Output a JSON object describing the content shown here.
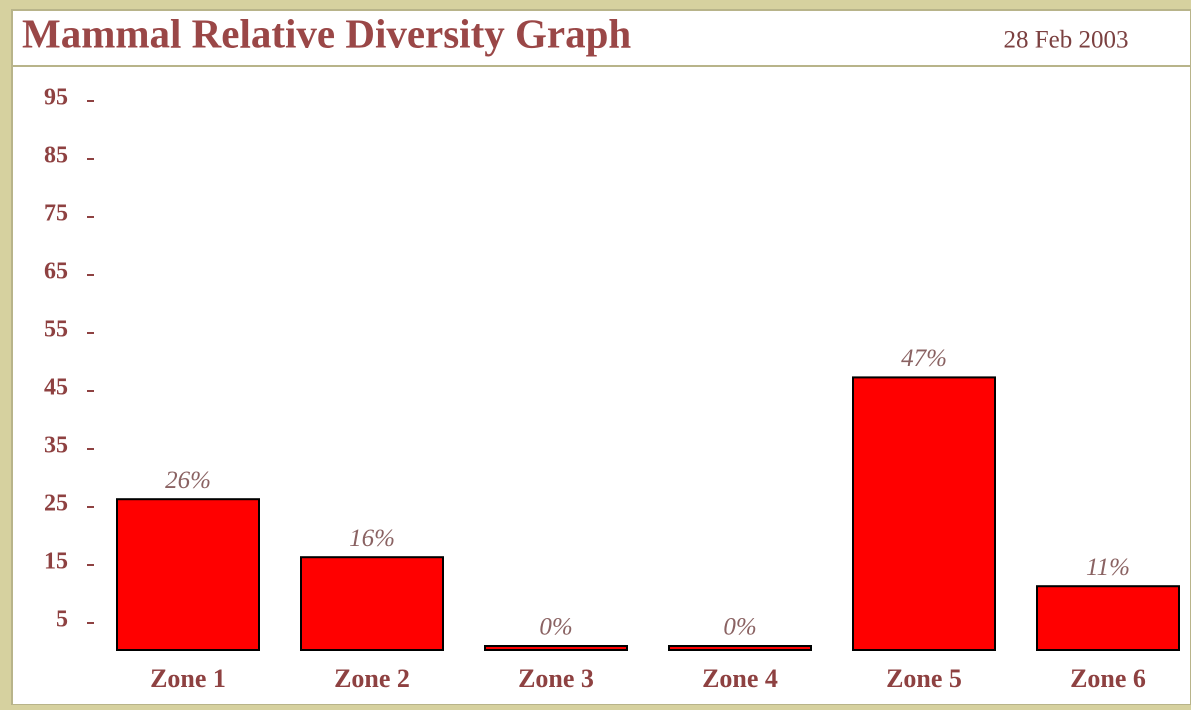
{
  "chart_data": {
    "type": "bar",
    "title": "Mammal Relative Diversity Graph",
    "subtitle": "28 Feb 2003",
    "categories": [
      "Zone 1",
      "Zone 2",
      "Zone 3",
      "Zone 4",
      "Zone 5",
      "Zone 6"
    ],
    "values": [
      26,
      16,
      0,
      0,
      47,
      11
    ],
    "value_labels": [
      "26%",
      "16%",
      "0%",
      "0%",
      "47%",
      "11%"
    ],
    "color": "#ff0000",
    "ylim": [
      0,
      100
    ],
    "yticks": [
      5,
      15,
      25,
      35,
      45,
      55,
      65,
      75,
      85,
      95
    ],
    "grid": false
  }
}
